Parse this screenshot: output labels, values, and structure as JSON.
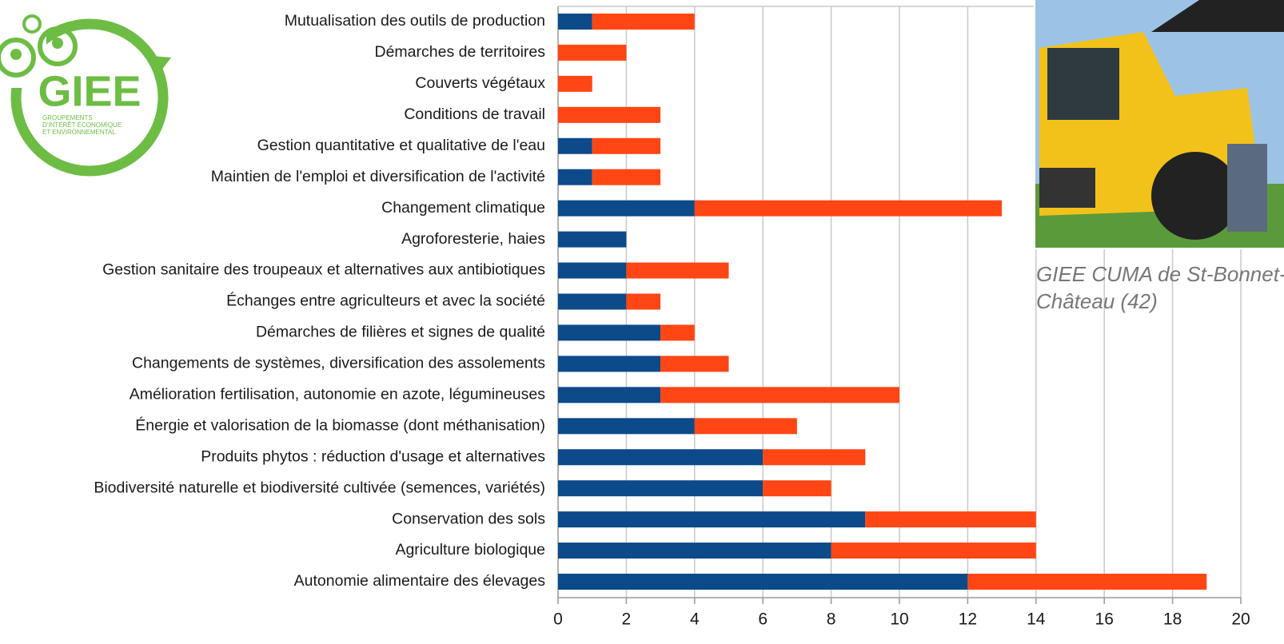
{
  "chart_data": {
    "type": "stacked-barh",
    "categories": [
      "Mutualisation des outils de production",
      "Démarches de territoires",
      "Couverts végétaux",
      "Conditions de travail",
      "Gestion quantitative et qualitative de l'eau",
      "Maintien de l'emploi et diversification de l'activité",
      "Changement climatique",
      "Agroforesterie, haies",
      "Gestion sanitaire des troupeaux et alternatives aux antibiotiques",
      "Échanges entre agriculteurs et avec la société",
      "Démarches de filières et signes de qualité",
      "Changements de systèmes, diversification des assolements",
      "Amélioration fertilisation, autonomie en azote, légumineuses",
      "Énergie et valorisation de la biomasse (dont méthanisation)",
      "Produits phytos : réduction d'usage et alternatives",
      "Biodiversité naturelle et biodiversité cultivée (semences, variétés)",
      "Conservation des sols",
      "Agriculture biologique",
      "Autonomie alimentaire des élevages"
    ],
    "series": [
      {
        "color": "#0c4a8a",
        "values": [
          1,
          0,
          0,
          0,
          1,
          1,
          4,
          2,
          2,
          2,
          3,
          3,
          3,
          4,
          6,
          6,
          9,
          8,
          12
        ]
      },
      {
        "color": "#ff4614",
        "values": [
          3,
          2,
          1,
          3,
          2,
          2,
          9,
          0,
          3,
          1,
          1,
          2,
          7,
          3,
          3,
          2,
          5,
          6,
          7
        ]
      }
    ],
    "xlim": [
      0,
      20
    ],
    "xticks": [
      0,
      2,
      4,
      6,
      8,
      10,
      12,
      14,
      16,
      18,
      20
    ],
    "grid": true
  },
  "logo": {
    "title": "GIEE",
    "subtitle_lines": [
      "GROUPEMENTS",
      "D'INTÉRÊT ÉCONOMIQUE",
      "ET ENVIRONNEMENTAL"
    ]
  },
  "photo": {
    "caption_lines": [
      "GIEE CUMA de St-Bonnet-le-",
      "Château (42)"
    ]
  }
}
